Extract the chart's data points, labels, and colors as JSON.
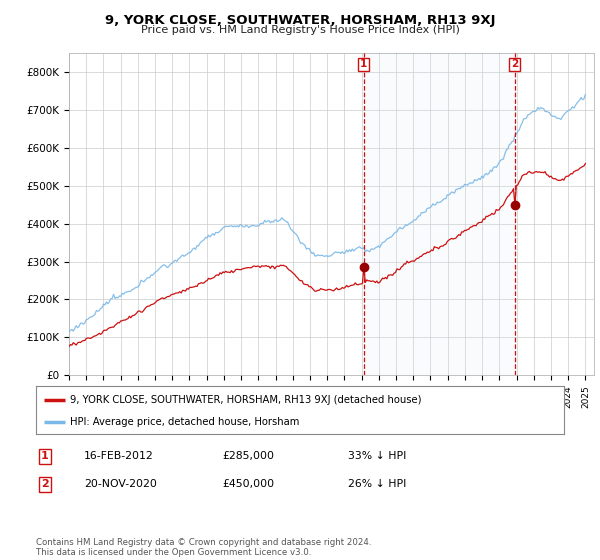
{
  "title": "9, YORK CLOSE, SOUTHWATER, HORSHAM, RH13 9XJ",
  "subtitle": "Price paid vs. HM Land Registry's House Price Index (HPI)",
  "ylim": [
    0,
    850000
  ],
  "yticks": [
    0,
    100000,
    200000,
    300000,
    400000,
    500000,
    600000,
    700000,
    800000
  ],
  "ytick_labels": [
    "£0",
    "£100K",
    "£200K",
    "£300K",
    "£400K",
    "£500K",
    "£600K",
    "£700K",
    "£800K"
  ],
  "hpi_color": "#7ab8e8",
  "hpi_fill_color": "#d8eaf8",
  "price_color": "#cc1111",
  "marker_color": "#990000",
  "vline_color": "#cc1111",
  "grid_color": "#cccccc",
  "bg_color": "#ffffff",
  "sale1_date": 2012.12,
  "sale1_price": 285000,
  "sale2_date": 2020.9,
  "sale2_price": 450000,
  "legend_line1": "9, YORK CLOSE, SOUTHWATER, HORSHAM, RH13 9XJ (detached house)",
  "legend_line2": "HPI: Average price, detached house, Horsham",
  "note1_num": "1",
  "note1_date": "16-FEB-2012",
  "note1_price": "£285,000",
  "note1_pct": "33% ↓ HPI",
  "note2_num": "2",
  "note2_date": "20-NOV-2020",
  "note2_price": "£450,000",
  "note2_pct": "26% ↓ HPI",
  "footer": "Contains HM Land Registry data © Crown copyright and database right 2024.\nThis data is licensed under the Open Government Licence v3.0.",
  "xlim_left": 1995,
  "xlim_right": 2025.5
}
